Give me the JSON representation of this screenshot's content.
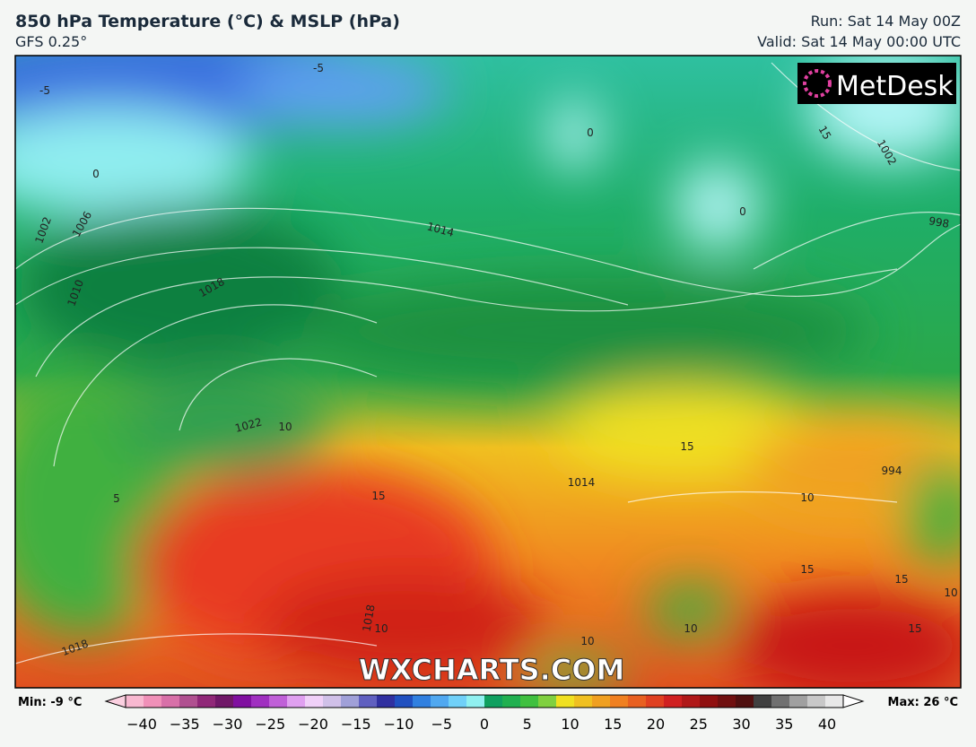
{
  "header": {
    "title": "850 hPa Temperature (°C) & MSLP (hPa)",
    "model": "GFS 0.25°",
    "run": "Run: Sat 14 May 00Z",
    "valid": "Valid: Sat 14 May 00:00 UTC"
  },
  "map": {
    "logo": "MetDesk",
    "watermark": "WXCHARTS.COM",
    "contour_labels": [
      "-5",
      "-5",
      "0",
      "0",
      "0",
      "1002",
      "1006",
      "1010",
      "1014",
      "1018",
      "1022",
      "10",
      "5",
      "15",
      "15",
      "15",
      "1002",
      "998",
      "994",
      "10",
      "1014",
      "15",
      "15",
      "10",
      "15",
      "10",
      "10",
      "1018",
      "10",
      "1018"
    ]
  },
  "legend": {
    "min": "Min: -9 °C",
    "max": "Max: 26 °C",
    "ticks": [
      "−40",
      "−35",
      "−30",
      "−25",
      "−20",
      "−15",
      "−10",
      "−5",
      "0",
      "5",
      "10",
      "15",
      "20",
      "25",
      "30",
      "35",
      "40"
    ]
  }
}
